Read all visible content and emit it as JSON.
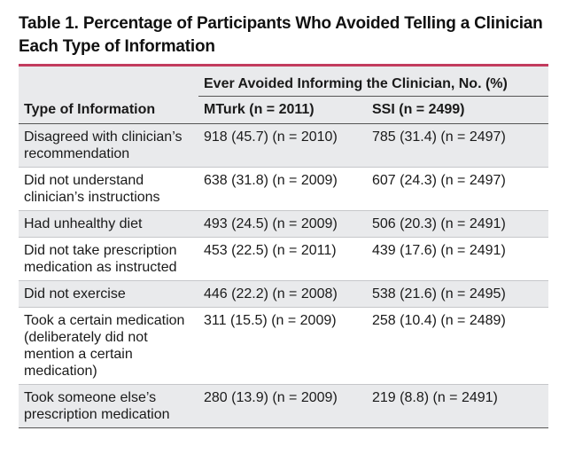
{
  "title": "Table 1. Percentage of Participants Who Avoided Telling a Clinician Each Type of Information",
  "accent_color": "#c23b5e",
  "table": {
    "spanner": "Ever Avoided Informing the Clinician, No. (%)",
    "headers": [
      "Type of Information",
      "MTurk (n = 2011)",
      "SSI (n = 2499)"
    ],
    "rows": [
      {
        "type": "Disagreed with clinician’s recommendation",
        "mturk": "918 (45.7) (n = 2010)",
        "ssi": "785 (31.4) (n = 2497)"
      },
      {
        "type": "Did not understand clinician’s instructions",
        "mturk": "638 (31.8) (n = 2009)",
        "ssi": "607 (24.3) (n = 2497)"
      },
      {
        "type": "Had unhealthy diet",
        "mturk": "493 (24.5) (n = 2009)",
        "ssi": "506 (20.3) (n = 2491)"
      },
      {
        "type": "Did not take prescription medication as instructed",
        "mturk": "453 (22.5) (n = 2011)",
        "ssi": "439 (17.6) (n = 2491)"
      },
      {
        "type": "Did not exercise",
        "mturk": "446 (22.2) (n = 2008)",
        "ssi": "538 (21.6) (n = 2495)"
      },
      {
        "type": "Took a certain medication (deliberately did not mention a certain medication)",
        "mturk": "311 (15.5) (n = 2009)",
        "ssi": "258 (10.4) (n = 2489)"
      },
      {
        "type": "Took someone else’s prescription medication",
        "mturk": "280 (13.9) (n = 2009)",
        "ssi": "219 (8.8) (n = 2491)"
      }
    ]
  }
}
